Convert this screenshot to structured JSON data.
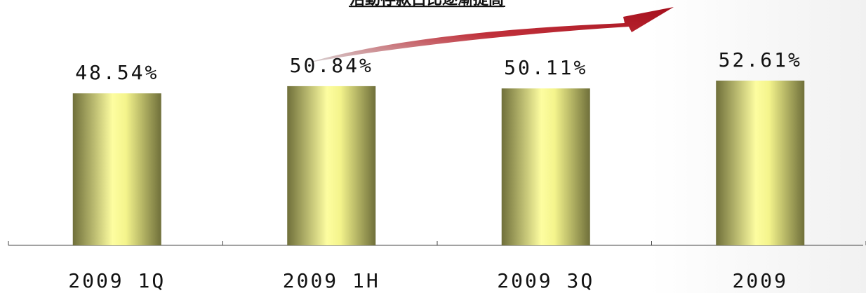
{
  "chart_data": {
    "type": "bar",
    "categories": [
      "2009 1Q",
      "2009 1H",
      "2009 3Q",
      "2009"
    ],
    "values": [
      48.54,
      50.84,
      50.11,
      52.61
    ],
    "value_labels": [
      "48.54%",
      "50.84%",
      "50.11%",
      "52.61%"
    ],
    "title": "",
    "xlabel": "",
    "ylabel": "",
    "ylim": [
      0,
      60
    ],
    "grid": false,
    "legend": "none",
    "annotation": {
      "text": "活動存款占比逐漸提高",
      "arrow": "up-right",
      "color": "#b0121f"
    },
    "colors": {
      "bar_light": "#fdfda0",
      "bar_dark": "#6f6f3a",
      "axis": "#444444",
      "text": "#111111"
    }
  }
}
